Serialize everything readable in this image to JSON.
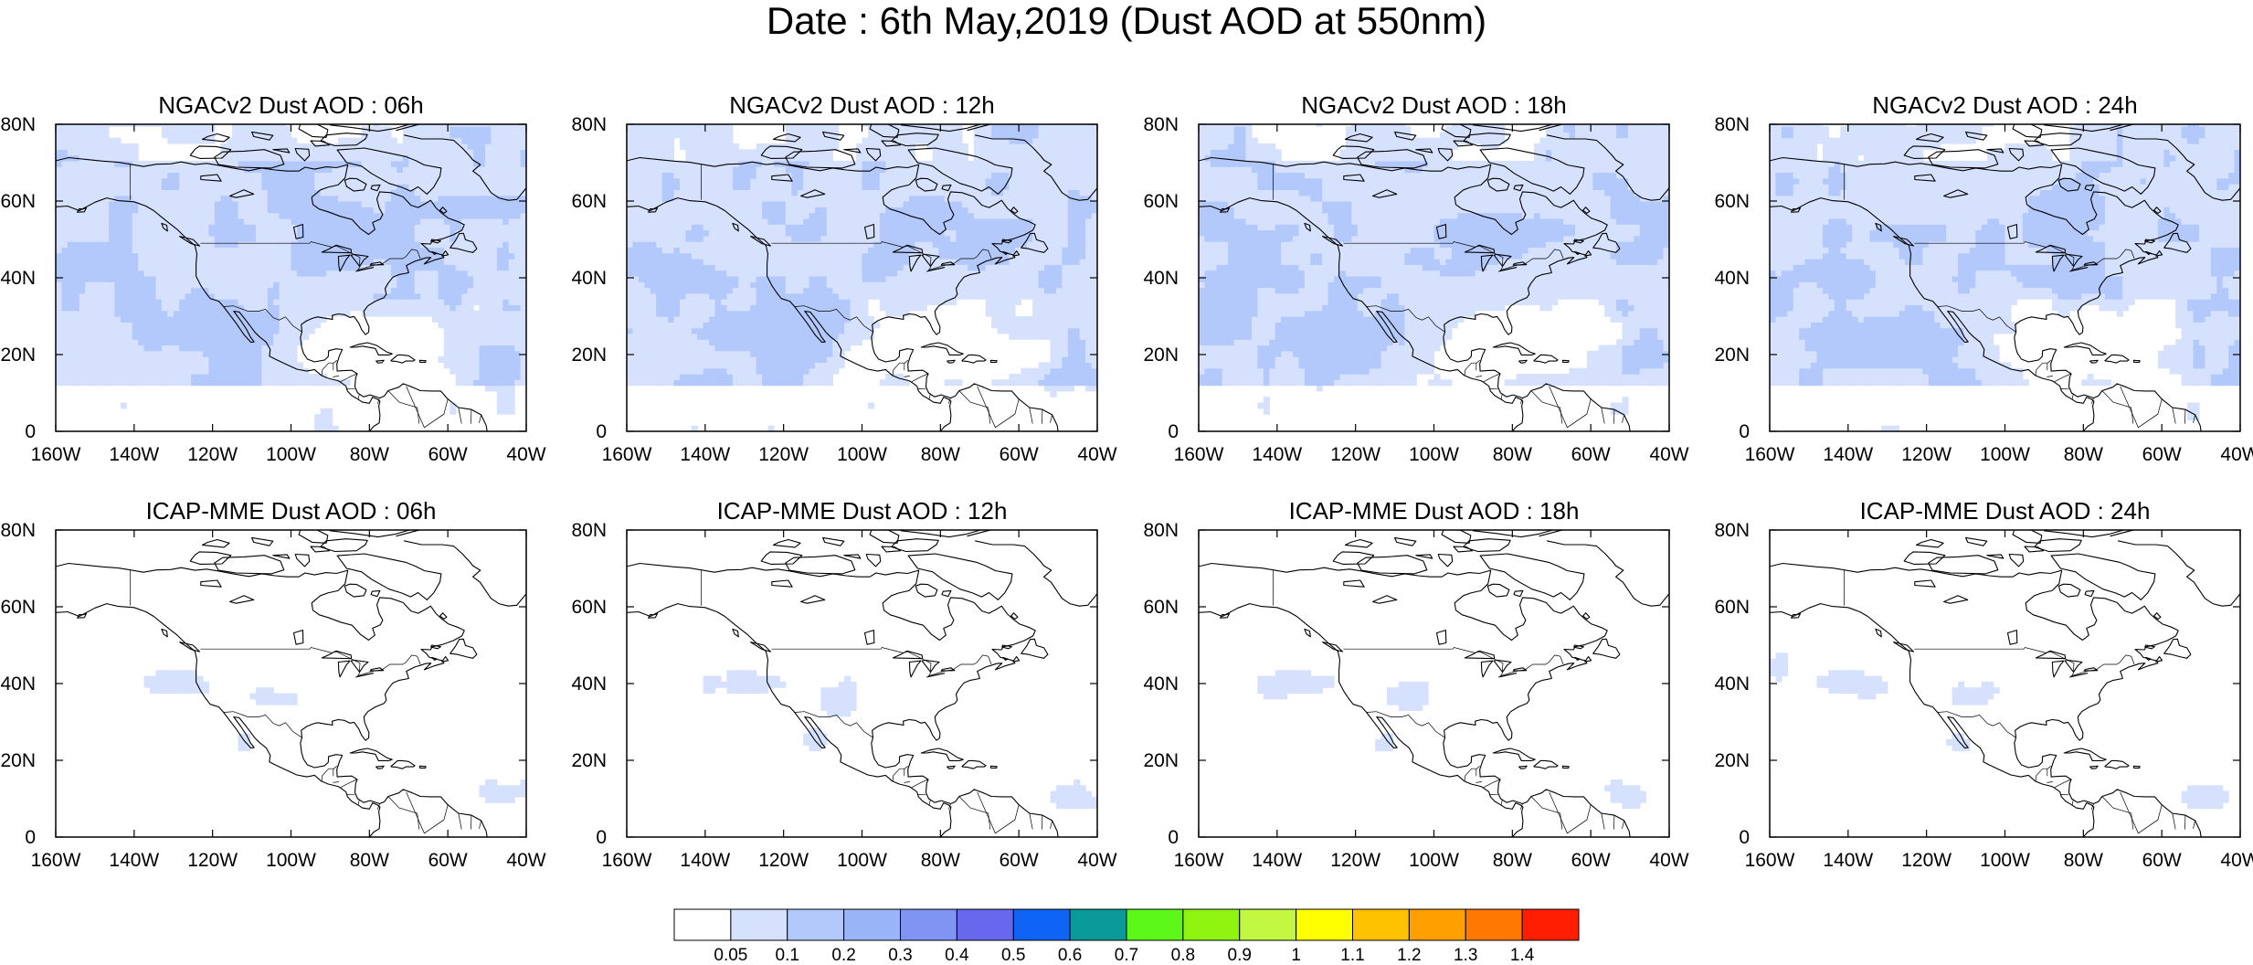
{
  "title": "Date : 6th May,2019 (Dust AOD at 550nm)",
  "map": {
    "lon_range": [
      -160,
      -40
    ],
    "lat_range": [
      0,
      80
    ],
    "lon_ticks": [
      "160W",
      "140W",
      "120W",
      "100W",
      "80W",
      "60W",
      "40W"
    ],
    "lat_ticks": [
      "0",
      "20N",
      "40N",
      "60N",
      "80N"
    ]
  },
  "panels": [
    {
      "title": "NGACv2 Dust AOD : 06h",
      "model": "NGAC",
      "hour": 6
    },
    {
      "title": "NGACv2 Dust AOD : 12h",
      "model": "NGAC",
      "hour": 12
    },
    {
      "title": "NGACv2 Dust AOD : 18h",
      "model": "NGAC",
      "hour": 18
    },
    {
      "title": "NGACv2 Dust AOD : 24h",
      "model": "NGAC",
      "hour": 24
    },
    {
      "title": "ICAP-MME Dust AOD : 06h",
      "model": "ICAP",
      "hour": 6
    },
    {
      "title": "ICAP-MME Dust AOD : 12h",
      "model": "ICAP",
      "hour": 12
    },
    {
      "title": "ICAP-MME Dust AOD : 18h",
      "model": "ICAP",
      "hour": 18
    },
    {
      "title": "ICAP-MME Dust AOD : 24h",
      "model": "ICAP",
      "hour": 24
    }
  ],
  "colorbar": {
    "colors": [
      "#ffffff",
      "#d5e1fd",
      "#b3c8fb",
      "#99b5f8",
      "#8094f3",
      "#6868ee",
      "#0f64f5",
      "#0a9a9a",
      "#5cf81a",
      "#8ff510",
      "#c2f742",
      "#ffff00",
      "#ffc200",
      "#ff9f00",
      "#ff7900",
      "#ff1f00"
    ],
    "labels": [
      "0.05",
      "0.1",
      "0.2",
      "0.3",
      "0.4",
      "0.5",
      "0.6",
      "0.7",
      "0.8",
      "0.9",
      "1",
      "1.1",
      "1.2",
      "1.3",
      "1.4"
    ]
  }
}
